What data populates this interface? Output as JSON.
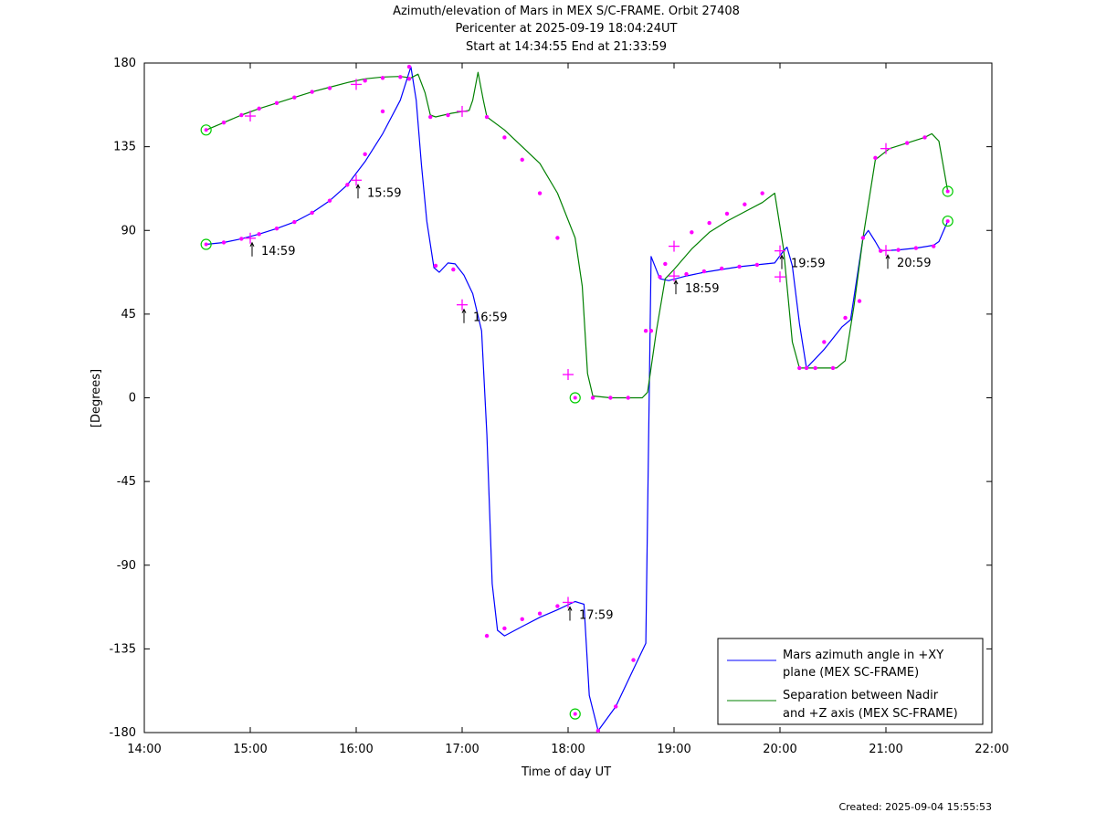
{
  "chart_data": {
    "type": "line",
    "title": "Azimuth/elevation of Mars in MEX S/C-FRAME.  Orbit 27408",
    "subtitle_1": "Pericenter at 2025-09-19 18:04:24UT",
    "subtitle_2": "Start at 14:34:55 End at 21:33:59",
    "xlabel": "Time of day UT",
    "ylabel": "[Degrees]",
    "xlim": [
      "14:00",
      "22:00"
    ],
    "ylim": [
      -180,
      180
    ],
    "grid": false,
    "legend_position": "bottom-right",
    "x_ticks": [
      "14:00",
      "15:00",
      "16:00",
      "17:00",
      "18:00",
      "19:00",
      "20:00",
      "21:00",
      "22:00"
    ],
    "y_ticks": [
      "180",
      "135",
      "90",
      "45",
      "0",
      "-45",
      "-90",
      "-135",
      "-180"
    ],
    "series": [
      {
        "name_line1": "Mars azimuth angle in +XY",
        "name_line2": "plane (MEX SC-FRAME)",
        "color": "#0000ff",
        "points": [
          [
            "14:35",
            82.5
          ],
          [
            "14:45",
            83.5
          ],
          [
            "14:55",
            85.5
          ],
          [
            "15:05",
            88
          ],
          [
            "15:15",
            91
          ],
          [
            "15:25",
            94.5
          ],
          [
            "15:35",
            99.5
          ],
          [
            "15:45",
            106
          ],
          [
            "15:55",
            114.5
          ],
          [
            "16:05",
            127
          ],
          [
            "16:15",
            142
          ],
          [
            "16:25",
            160
          ],
          [
            "16:31",
            178
          ],
          [
            "16:34",
            160
          ],
          [
            "16:37",
            125
          ],
          [
            "16:40",
            95
          ],
          [
            "16:44",
            70
          ],
          [
            "16:47",
            67.5
          ],
          [
            "16:52",
            72.5
          ],
          [
            "16:56",
            72
          ],
          [
            "17:01",
            66
          ],
          [
            "17:06",
            56
          ],
          [
            "17:11",
            36
          ],
          [
            "17:14",
            -20
          ],
          [
            "17:17",
            -100
          ],
          [
            "17:20",
            -125
          ],
          [
            "17:24",
            -128
          ],
          [
            "17:34",
            -123
          ],
          [
            "17:44",
            -118
          ],
          [
            "17:54",
            -114
          ],
          [
            "18:04",
            -109.5
          ],
          [
            "18:09",
            -111
          ],
          [
            "18:12",
            -160
          ],
          [
            "18:17",
            -179
          ],
          [
            "18:27",
            -166
          ],
          [
            "18:37",
            -146
          ],
          [
            "18:44",
            -132
          ],
          [
            "18:47",
            76
          ],
          [
            "18:52",
            64
          ],
          [
            "18:57",
            63
          ],
          [
            "19:07",
            65.5
          ],
          [
            "19:17",
            67.5
          ],
          [
            "19:27",
            69
          ],
          [
            "19:37",
            70.5
          ],
          [
            "19:47",
            71.5
          ],
          [
            "19:57",
            72.5
          ],
          [
            "20:02",
            79
          ],
          [
            "20:04",
            81
          ],
          [
            "20:07",
            71
          ],
          [
            "20:11",
            40
          ],
          [
            "20:15",
            16
          ],
          [
            "20:25",
            26
          ],
          [
            "20:35",
            38
          ],
          [
            "20:40",
            42
          ],
          [
            "20:47",
            86
          ],
          [
            "20:50",
            90
          ],
          [
            "20:54",
            84
          ],
          [
            "20:57",
            79
          ],
          [
            "21:07",
            79.5
          ],
          [
            "21:17",
            80.5
          ],
          [
            "21:27",
            82
          ],
          [
            "21:30",
            84
          ],
          [
            "21:35",
            95
          ]
        ]
      },
      {
        "name_line1": "Separation between Nadir",
        "name_line2": "and +Z axis (MEX SC-FRAME)",
        "color": "#008000",
        "points": [
          [
            "14:35",
            144
          ],
          [
            "14:45",
            148
          ],
          [
            "14:55",
            152
          ],
          [
            "15:05",
            155.5
          ],
          [
            "15:15",
            158.5
          ],
          [
            "15:25",
            161.5
          ],
          [
            "15:35",
            164.5
          ],
          [
            "15:45",
            167
          ],
          [
            "15:55",
            169.5
          ],
          [
            "16:05",
            171.5
          ],
          [
            "16:15",
            172.5
          ],
          [
            "16:25",
            172.8
          ],
          [
            "16:31",
            172
          ],
          [
            "16:35",
            174
          ],
          [
            "16:39",
            164
          ],
          [
            "16:42",
            152
          ],
          [
            "16:45",
            151
          ],
          [
            "16:54",
            153
          ],
          [
            "17:04",
            154.5
          ],
          [
            "17:06",
            160
          ],
          [
            "17:09",
            175
          ],
          [
            "17:12",
            160
          ],
          [
            "17:14",
            151
          ],
          [
            "17:24",
            144
          ],
          [
            "17:34",
            135
          ],
          [
            "17:44",
            126
          ],
          [
            "17:54",
            110
          ],
          [
            "18:04",
            86
          ],
          [
            "18:08",
            60
          ],
          [
            "18:11",
            13
          ],
          [
            "18:14",
            1
          ],
          [
            "18:24",
            0
          ],
          [
            "18:34",
            0
          ],
          [
            "18:42",
            0
          ],
          [
            "18:45",
            3
          ],
          [
            "18:50",
            36
          ],
          [
            "18:55",
            64
          ],
          [
            "19:00",
            69
          ],
          [
            "19:10",
            80
          ],
          [
            "19:20",
            89
          ],
          [
            "19:30",
            95
          ],
          [
            "19:40",
            100
          ],
          [
            "19:50",
            105
          ],
          [
            "19:57",
            110
          ],
          [
            "20:02",
            80
          ],
          [
            "20:07",
            30
          ],
          [
            "20:11",
            16
          ],
          [
            "20:20",
            16
          ],
          [
            "20:32",
            16
          ],
          [
            "20:37",
            20
          ],
          [
            "20:42",
            50
          ],
          [
            "20:47",
            86
          ],
          [
            "20:54",
            128
          ],
          [
            "21:02",
            134
          ],
          [
            "21:12",
            137
          ],
          [
            "21:22",
            140
          ],
          [
            "21:26",
            142
          ],
          [
            "21:30",
            138
          ],
          [
            "21:35",
            111
          ]
        ]
      }
    ],
    "labeled_points": [
      {
        "x": "15:00",
        "y": 85.8,
        "label": "14:59"
      },
      {
        "x": "16:00",
        "y": 117,
        "label": "15:59"
      },
      {
        "x": "17:00",
        "y": 50,
        "label": "16:59"
      },
      {
        "x": "18:00",
        "y": -110,
        "label": "17:59"
      },
      {
        "x": "19:00",
        "y": 65.5,
        "label": "18:59"
      },
      {
        "x": "20:00",
        "y": 79,
        "label": "19:59"
      },
      {
        "x": "21:00",
        "y": 79.2,
        "label": "20:59"
      }
    ],
    "plus_marker_points": [
      [
        "15:00",
        85.8
      ],
      [
        "16:00",
        117
      ],
      [
        "17:00",
        50
      ],
      [
        "18:00",
        -110
      ],
      [
        "19:00",
        65.5
      ],
      [
        "20:00",
        79
      ],
      [
        "21:00",
        79.2
      ],
      [
        "15:00",
        151.5
      ],
      [
        "16:00",
        168.5
      ],
      [
        "17:00",
        154
      ],
      [
        "18:00",
        12.5
      ],
      [
        "19:00",
        81.5
      ],
      [
        "20:00",
        65
      ],
      [
        "21:00",
        134
      ]
    ],
    "circle_marker_points": [
      [
        "14:35",
        82.5
      ],
      [
        "14:35",
        144
      ],
      [
        "18:04",
        0
      ],
      [
        "18:04",
        -170
      ],
      [
        "21:35",
        95
      ],
      [
        "21:35",
        111
      ]
    ],
    "dot_marker_points": [
      [
        "14:45",
        83.5
      ],
      [
        "14:55",
        85.5
      ],
      [
        "15:05",
        88
      ],
      [
        "15:15",
        91
      ],
      [
        "15:25",
        94.5
      ],
      [
        "15:35",
        99.5
      ],
      [
        "15:45",
        106
      ],
      [
        "15:55",
        114.5
      ],
      [
        "16:05",
        131
      ],
      [
        "16:15",
        154
      ],
      [
        "16:30",
        178
      ],
      [
        "16:45",
        71
      ],
      [
        "16:55",
        69
      ],
      [
        "17:14",
        -128
      ],
      [
        "17:24",
        -124
      ],
      [
        "17:34",
        -119
      ],
      [
        "17:44",
        -116
      ],
      [
        "17:54",
        -112
      ],
      [
        "18:17",
        -179
      ],
      [
        "18:27",
        -166
      ],
      [
        "18:37",
        -141
      ],
      [
        "18:47",
        36
      ],
      [
        "18:52",
        65
      ],
      [
        "19:07",
        66.5
      ],
      [
        "19:17",
        68
      ],
      [
        "19:27",
        69.5
      ],
      [
        "19:37",
        70.5
      ],
      [
        "19:47",
        71.5
      ],
      [
        "20:15",
        16
      ],
      [
        "20:25",
        30
      ],
      [
        "20:37",
        43
      ],
      [
        "20:47",
        86
      ],
      [
        "20:57",
        79
      ],
      [
        "21:07",
        79.5
      ],
      [
        "21:17",
        80.5
      ],
      [
        "21:27",
        81.5
      ],
      [
        "14:45",
        148
      ],
      [
        "14:55",
        152
      ],
      [
        "15:05",
        155.5
      ],
      [
        "15:15",
        158.5
      ],
      [
        "15:25",
        161.5
      ],
      [
        "15:35",
        164.5
      ],
      [
        "15:45",
        166.5
      ],
      [
        "16:05",
        170.5
      ],
      [
        "16:15",
        172
      ],
      [
        "16:25",
        172.5
      ],
      [
        "16:30",
        171.5
      ],
      [
        "16:42",
        151
      ],
      [
        "16:52",
        152
      ],
      [
        "17:14",
        151
      ],
      [
        "17:24",
        140
      ],
      [
        "17:34",
        128
      ],
      [
        "17:44",
        110
      ],
      [
        "17:54",
        86
      ],
      [
        "18:14",
        0
      ],
      [
        "18:24",
        0
      ],
      [
        "18:34",
        0
      ],
      [
        "18:44",
        36
      ],
      [
        "18:55",
        72
      ],
      [
        "19:10",
        89
      ],
      [
        "19:20",
        94
      ],
      [
        "19:30",
        99
      ],
      [
        "19:40",
        104
      ],
      [
        "19:50",
        110
      ],
      [
        "20:11",
        16
      ],
      [
        "20:20",
        16
      ],
      [
        "20:30",
        16
      ],
      [
        "20:45",
        52
      ],
      [
        "20:54",
        129
      ],
      [
        "21:12",
        137
      ],
      [
        "21:22",
        140
      ]
    ]
  },
  "footer": {
    "created": "Created: 2025-09-04 15:55:53"
  }
}
